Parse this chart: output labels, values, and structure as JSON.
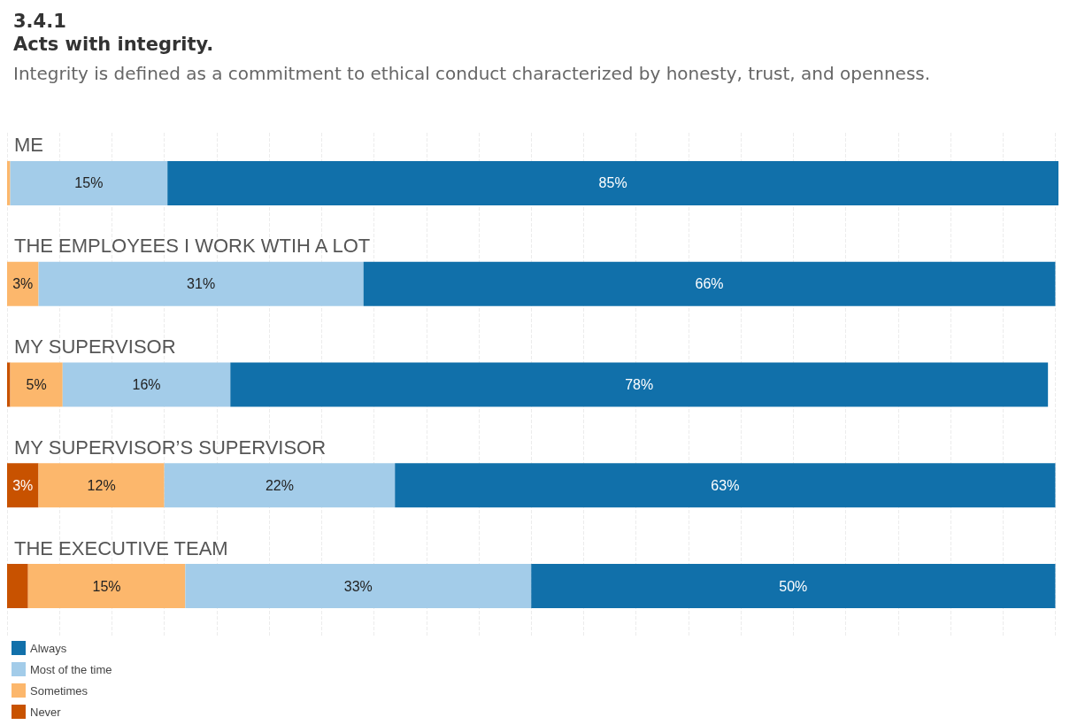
{
  "chart_data": {
    "type": "bar",
    "orientation": "horizontal",
    "stacked": true,
    "title": "3.4.1\nActs with integrity.",
    "subtitle": "Integrity is defined as a commitment to ethical conduct characterized by honesty, trust, and openness.",
    "categories": [
      "ME",
      "THE EMPLOYEES I WORK WTIH A LOT",
      "MY SUPERVISOR",
      "MY SUPERVISOR’S SUPERVISOR",
      "THE EXECUTIVE TEAM"
    ],
    "series": [
      {
        "name": "Never",
        "color": "#c85200",
        "values": [
          0,
          0,
          0.3,
          3,
          2
        ],
        "value_labels": [
          null,
          null,
          null,
          "3%",
          null
        ]
      },
      {
        "name": "Sometimes",
        "color": "#fcb76c",
        "values": [
          0.3,
          3,
          5,
          12,
          15
        ],
        "value_labels": [
          null,
          "3%",
          "5%",
          "12%",
          "15%"
        ]
      },
      {
        "name": "Most of the time",
        "color": "#a3cce9",
        "values": [
          15,
          31,
          16,
          22,
          33
        ],
        "value_labels": [
          "15%",
          "31%",
          "16%",
          "22%",
          "33%"
        ]
      },
      {
        "name": "Always",
        "color": "#1170aa",
        "values": [
          85,
          66,
          78,
          63,
          50
        ],
        "value_labels": [
          "85%",
          "66%",
          "78%",
          "63%",
          "50%"
        ]
      }
    ],
    "xlim": [
      0,
      100.3
    ],
    "xticks": [
      {
        "value": 0,
        "label": null
      },
      {
        "value": 5,
        "label": null
      },
      {
        "value": 10,
        "label": null
      },
      {
        "value": 15,
        "label": null
      },
      {
        "value": 20,
        "label": null
      },
      {
        "value": 25,
        "label": null
      },
      {
        "value": 30,
        "label": null
      },
      {
        "value": 35,
        "label": null
      },
      {
        "value": 40,
        "label": null
      },
      {
        "value": 45,
        "label": null
      },
      {
        "value": 50,
        "label": null
      },
      {
        "value": 55,
        "label": null
      },
      {
        "value": 60,
        "label": null
      },
      {
        "value": 65,
        "label": null
      },
      {
        "value": 70,
        "label": null
      },
      {
        "value": 75,
        "label": null
      },
      {
        "value": 80,
        "label": null
      },
      {
        "value": 85,
        "label": null
      },
      {
        "value": 90,
        "label": null
      },
      {
        "value": 95,
        "label": null
      },
      {
        "value": 100,
        "label": null
      }
    ],
    "tick_labels": "y",
    "grid": "x",
    "legend": "bottom left"
  }
}
